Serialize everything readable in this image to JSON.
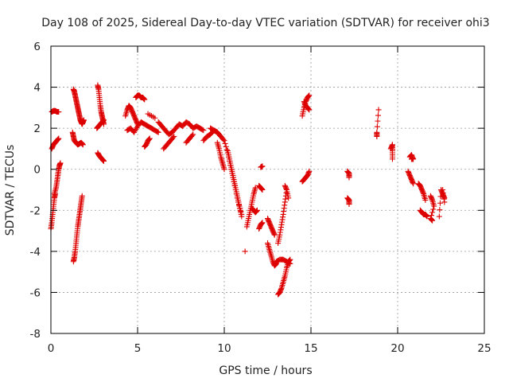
{
  "chart_data": {
    "type": "scatter",
    "title": "Day 108 of 2025, Sidereal Day-to-day VTEC variation (SDTVAR) for receiver ohi3",
    "xlabel": "GPS time / hours",
    "ylabel": "SDTVAR / TECUs",
    "xlim": [
      0,
      25
    ],
    "ylim": [
      -8,
      6
    ],
    "xticks": [
      0,
      5,
      10,
      15,
      20,
      25
    ],
    "yticks": [
      -8,
      -6,
      -4,
      -2,
      0,
      2,
      4,
      6
    ],
    "grid": true,
    "marker": "+",
    "color": "#dd0000",
    "segments": [
      {
        "x": [
          0.0,
          0.05,
          0.1,
          0.15,
          0.2,
          0.25
        ],
        "y": [
          -2.9,
          -2.6,
          -2.2,
          -1.8,
          -1.4,
          -1.2
        ]
      },
      {
        "x": [
          0.2,
          0.3,
          0.35,
          0.4,
          0.45,
          0.5,
          0.55
        ],
        "y": [
          -1.2,
          -0.9,
          -0.6,
          -0.3,
          0.0,
          0.2,
          0.3
        ]
      },
      {
        "x": [
          0.05,
          0.15,
          0.25,
          0.35,
          0.45
        ],
        "y": [
          1.0,
          1.2,
          1.3,
          1.4,
          1.5
        ]
      },
      {
        "x": [
          0.05,
          0.15,
          0.25,
          0.35,
          0.45
        ],
        "y": [
          2.8,
          2.85,
          2.85,
          2.8,
          2.8
        ]
      },
      {
        "x": [
          1.3,
          1.35,
          1.4,
          1.45,
          1.5,
          1.55,
          1.6,
          1.65,
          1.7,
          1.75,
          1.8,
          1.85,
          1.9
        ],
        "y": [
          3.9,
          3.8,
          3.6,
          3.4,
          3.2,
          3.0,
          2.8,
          2.6,
          2.4,
          2.3,
          2.2,
          2.3,
          2.4
        ]
      },
      {
        "x": [
          1.25,
          1.3,
          1.35,
          1.45,
          1.55,
          1.65,
          1.75,
          1.85
        ],
        "y": [
          1.8,
          1.6,
          1.4,
          1.3,
          1.2,
          1.25,
          1.3,
          1.2
        ]
      },
      {
        "x": [
          1.3,
          1.35,
          1.4,
          1.45,
          1.5,
          1.55,
          1.6,
          1.65,
          1.7,
          1.75,
          1.8
        ],
        "y": [
          -4.5,
          -4.3,
          -4.0,
          -3.6,
          -3.2,
          -2.8,
          -2.5,
          -2.2,
          -1.9,
          -1.6,
          -1.3
        ]
      },
      {
        "x": [
          2.7,
          2.75,
          2.8,
          2.85,
          2.9,
          2.95,
          3.0,
          3.05
        ],
        "y": [
          4.1,
          3.9,
          3.5,
          3.1,
          2.8,
          2.6,
          2.4,
          2.2
        ]
      },
      {
        "x": [
          2.65,
          2.75,
          2.85,
          2.95,
          3.05
        ],
        "y": [
          2.0,
          2.1,
          2.2,
          2.3,
          2.4
        ]
      },
      {
        "x": [
          2.7,
          2.8,
          2.9,
          3.0,
          3.05
        ],
        "y": [
          0.8,
          0.65,
          0.55,
          0.45,
          0.4
        ]
      },
      {
        "x": [
          4.3,
          4.4,
          4.5,
          4.6,
          4.7,
          4.8,
          4.9,
          5.0
        ],
        "y": [
          2.6,
          2.9,
          3.1,
          3.0,
          2.8,
          2.6,
          2.4,
          2.2
        ]
      },
      {
        "x": [
          4.4,
          4.6,
          4.8,
          5.0,
          5.2,
          5.4,
          5.6,
          5.8,
          6.0,
          6.2
        ],
        "y": [
          1.9,
          2.0,
          1.8,
          2.1,
          2.3,
          2.2,
          2.1,
          2.0,
          1.9,
          1.8
        ]
      },
      {
        "x": [
          4.9,
          5.0,
          5.1,
          5.2,
          5.3,
          5.4
        ],
        "y": [
          3.5,
          3.6,
          3.6,
          3.5,
          3.5,
          3.4
        ]
      },
      {
        "x": [
          5.4,
          5.5,
          5.6,
          5.7
        ],
        "y": [
          1.1,
          1.2,
          1.4,
          1.5
        ]
      },
      {
        "x": [
          5.6,
          6.0
        ],
        "y": [
          2.7,
          2.5
        ]
      },
      {
        "x": [
          6.2,
          6.4,
          6.6,
          6.8,
          7.0,
          7.2,
          7.4,
          7.6,
          7.8,
          8.0,
          8.2,
          8.4,
          8.6,
          8.8
        ],
        "y": [
          2.3,
          2.1,
          1.9,
          1.7,
          1.8,
          2.0,
          2.2,
          2.1,
          2.3,
          2.2,
          2.0,
          2.1,
          2.0,
          1.9
        ]
      },
      {
        "x": [
          6.5,
          6.7,
          6.9,
          7.1
        ],
        "y": [
          1.0,
          1.2,
          1.4,
          1.6
        ]
      },
      {
        "x": [
          7.8,
          8.0,
          8.2
        ],
        "y": [
          1.3,
          1.5,
          1.7
        ]
      },
      {
        "x": [
          8.8,
          9.0,
          9.2,
          9.4,
          9.6,
          9.8
        ],
        "y": [
          1.4,
          1.6,
          1.7,
          1.9,
          1.8,
          1.6
        ]
      },
      {
        "x": [
          9.2,
          9.4,
          9.6,
          9.8,
          10.0,
          10.2,
          10.4,
          10.6,
          10.8,
          11.0
        ],
        "y": [
          2.0,
          1.9,
          1.8,
          1.6,
          1.4,
          0.8,
          0.0,
          -0.8,
          -1.6,
          -2.2
        ]
      },
      {
        "x": [
          9.6,
          9.7,
          9.8,
          9.9,
          10.0
        ],
        "y": [
          1.3,
          1.0,
          0.6,
          0.3,
          0.0
        ]
      },
      {
        "x": [
          10.2,
          10.3,
          10.4,
          10.5,
          10.6,
          10.7,
          10.8,
          10.9,
          11.0
        ],
        "y": [
          0.9,
          0.5,
          0.1,
          -0.3,
          -0.7,
          -1.1,
          -1.5,
          -1.9,
          -2.3
        ]
      },
      {
        "x": [
          11.3,
          11.4,
          11.5,
          11.6,
          11.7,
          11.8
        ],
        "y": [
          -2.8,
          -2.4,
          -2.0,
          -1.6,
          -1.2,
          -0.9
        ]
      },
      {
        "x": [
          11.2
        ],
        "y": [
          -4.0
        ]
      },
      {
        "x": [
          11.6,
          11.7,
          11.8,
          11.9
        ],
        "y": [
          -1.9,
          -2.0,
          -2.1,
          -2.0
        ]
      },
      {
        "x": [
          12.0,
          12.1,
          12.2
        ],
        "y": [
          -2.9,
          -2.7,
          -2.6
        ]
      },
      {
        "x": [
          12.1,
          12.2
        ],
        "y": [
          0.1,
          0.15
        ]
      },
      {
        "x": [
          12.0,
          12.1,
          12.2
        ],
        "y": [
          -0.8,
          -0.9,
          -1.0
        ]
      },
      {
        "x": [
          12.5,
          12.6,
          12.7,
          12.8,
          12.9,
          13.0
        ],
        "y": [
          -3.6,
          -3.9,
          -4.2,
          -4.5,
          -4.7,
          -4.6
        ]
      },
      {
        "x": [
          12.5,
          12.6,
          12.7,
          12.8,
          12.9
        ],
        "y": [
          -2.4,
          -2.6,
          -2.8,
          -3.0,
          -3.2
        ]
      },
      {
        "x": [
          13.1,
          13.2,
          13.3,
          13.4,
          13.5,
          13.6,
          13.7,
          13.8
        ],
        "y": [
          -6.1,
          -6.0,
          -5.8,
          -5.5,
          -5.2,
          -4.8,
          -4.5,
          -4.4
        ]
      },
      {
        "x": [
          13.1,
          13.2,
          13.3,
          13.4,
          13.5,
          13.6
        ],
        "y": [
          -3.6,
          -3.2,
          -2.7,
          -2.2,
          -1.6,
          -1.0
        ]
      },
      {
        "x": [
          13.5,
          13.6,
          13.7
        ],
        "y": [
          -0.8,
          -1.0,
          -1.4
        ]
      },
      {
        "x": [
          13.0,
          13.2,
          13.4,
          13.6,
          13.8
        ],
        "y": [
          -4.5,
          -4.4,
          -4.4,
          -4.5,
          -4.6
        ]
      },
      {
        "x": [
          14.5,
          14.6,
          14.7,
          14.8,
          14.9
        ],
        "y": [
          -0.6,
          -0.5,
          -0.4,
          -0.3,
          -0.1
        ]
      },
      {
        "x": [
          14.5,
          14.6,
          14.7,
          14.8,
          14.9
        ],
        "y": [
          2.6,
          3.0,
          3.3,
          3.5,
          3.6
        ]
      },
      {
        "x": [
          14.6,
          14.7,
          14.8,
          14.9
        ],
        "y": [
          3.3,
          3.1,
          3.0,
          2.9
        ]
      },
      {
        "x": [
          17.1,
          17.2,
          17.2
        ],
        "y": [
          -0.1,
          -0.2,
          -0.4
        ]
      },
      {
        "x": [
          17.1,
          17.2,
          17.2
        ],
        "y": [
          -1.4,
          -1.5,
          -1.7
        ]
      },
      {
        "x": [
          18.8,
          18.8,
          18.9
        ],
        "y": [
          1.6,
          1.8,
          2.9
        ]
      },
      {
        "x": [
          19.6,
          19.7,
          19.7,
          19.7
        ],
        "y": [
          1.0,
          1.2,
          0.9,
          0.5
        ]
      },
      {
        "x": [
          20.7,
          20.8,
          20.9,
          20.8
        ],
        "y": [
          0.6,
          0.7,
          0.5,
          0.5
        ]
      },
      {
        "x": [
          20.6,
          20.7,
          20.8,
          20.9
        ],
        "y": [
          -0.1,
          -0.3,
          -0.5,
          -0.7
        ]
      },
      {
        "x": [
          21.2,
          21.3,
          21.4,
          21.5,
          21.6
        ],
        "y": [
          -0.7,
          -0.8,
          -1.0,
          -1.2,
          -1.5
        ]
      },
      {
        "x": [
          21.3,
          21.4,
          21.5,
          21.6,
          21.7
        ],
        "y": [
          -2.0,
          -2.1,
          -2.2,
          -2.2,
          -2.3
        ]
      },
      {
        "x": [
          21.9,
          22.0,
          22.1,
          21.9,
          22.0
        ],
        "y": [
          -1.3,
          -1.5,
          -1.8,
          -2.4,
          -2.5
        ]
      },
      {
        "x": [
          22.4,
          22.5,
          22.6,
          22.7
        ],
        "y": [
          -2.3,
          -1.0,
          -1.2,
          -1.4
        ]
      },
      {
        "x": [
          22.6,
          22.7
        ],
        "y": [
          -1.0,
          -1.6
        ]
      }
    ]
  }
}
